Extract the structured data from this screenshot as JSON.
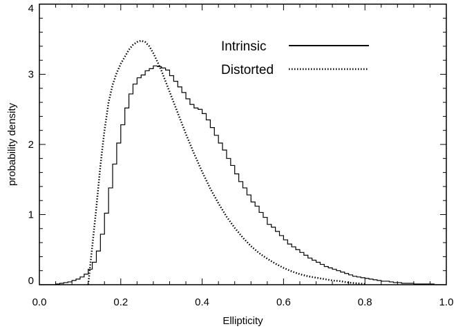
{
  "chart_data": {
    "type": "line",
    "xlabel": "Ellipticity",
    "ylabel": "probability density",
    "xlim": [
      0.0,
      1.0
    ],
    "ylim": [
      0,
      4
    ],
    "x_ticks": [
      "0.0",
      "0.2",
      "0.4",
      "0.6",
      "0.8",
      "1.0"
    ],
    "y_ticks": [
      "0",
      "1",
      "2",
      "3",
      "4"
    ],
    "grid": false,
    "legend_position": "top-right",
    "series": [
      {
        "name": "Intrinsic",
        "style": "solid-step",
        "color": "#000000",
        "bin_width": 0.01,
        "x": [
          0.0,
          0.01,
          0.02,
          0.03,
          0.04,
          0.05,
          0.06,
          0.07,
          0.08,
          0.09,
          0.1,
          0.11,
          0.12,
          0.13,
          0.14,
          0.15,
          0.16,
          0.17,
          0.18,
          0.19,
          0.2,
          0.21,
          0.22,
          0.23,
          0.24,
          0.25,
          0.26,
          0.27,
          0.28,
          0.29,
          0.3,
          0.31,
          0.32,
          0.33,
          0.34,
          0.35,
          0.36,
          0.37,
          0.38,
          0.39,
          0.4,
          0.41,
          0.42,
          0.43,
          0.44,
          0.45,
          0.46,
          0.47,
          0.48,
          0.49,
          0.5,
          0.51,
          0.52,
          0.53,
          0.54,
          0.55,
          0.56,
          0.57,
          0.58,
          0.59,
          0.6,
          0.61,
          0.62,
          0.63,
          0.64,
          0.65,
          0.66,
          0.67,
          0.68,
          0.69,
          0.7,
          0.71,
          0.72,
          0.73,
          0.74,
          0.75,
          0.76,
          0.77,
          0.78,
          0.79,
          0.8,
          0.81,
          0.82,
          0.83,
          0.84,
          0.85,
          0.86,
          0.87,
          0.88,
          0.89,
          0.9,
          0.91,
          0.92,
          0.93,
          0.94,
          0.95,
          0.96,
          0.97,
          0.98,
          0.99
        ],
        "values": [
          0.0,
          0.0,
          0.0,
          0.0,
          0.01,
          0.02,
          0.03,
          0.04,
          0.06,
          0.08,
          0.11,
          0.15,
          0.22,
          0.32,
          0.48,
          0.72,
          1.02,
          1.38,
          1.72,
          2.02,
          2.28,
          2.52,
          2.72,
          2.86,
          2.95,
          2.99,
          3.05,
          3.08,
          3.12,
          3.11,
          3.09,
          3.06,
          2.98,
          2.9,
          2.82,
          2.74,
          2.65,
          2.57,
          2.52,
          2.5,
          2.44,
          2.35,
          2.24,
          2.13,
          2.02,
          1.92,
          1.8,
          1.7,
          1.58,
          1.47,
          1.38,
          1.28,
          1.18,
          1.12,
          1.03,
          0.96,
          0.86,
          0.82,
          0.76,
          0.7,
          0.64,
          0.58,
          0.54,
          0.5,
          0.46,
          0.42,
          0.38,
          0.35,
          0.32,
          0.29,
          0.26,
          0.24,
          0.22,
          0.2,
          0.18,
          0.16,
          0.14,
          0.12,
          0.11,
          0.1,
          0.09,
          0.08,
          0.07,
          0.06,
          0.05,
          0.05,
          0.04,
          0.03,
          0.03,
          0.02,
          0.02,
          0.02,
          0.01,
          0.01,
          0.01,
          0.01,
          0.01,
          0.0,
          0.0,
          0.0
        ]
      },
      {
        "name": "Distorted",
        "style": "dotted",
        "color": "#000000",
        "x": [
          0.12,
          0.13,
          0.14,
          0.15,
          0.16,
          0.17,
          0.18,
          0.19,
          0.2,
          0.21,
          0.22,
          0.23,
          0.24,
          0.25,
          0.26,
          0.27,
          0.28,
          0.29,
          0.3,
          0.31,
          0.32,
          0.34,
          0.36,
          0.38,
          0.4,
          0.42,
          0.44,
          0.46,
          0.48,
          0.5,
          0.52,
          0.54,
          0.56,
          0.58,
          0.6,
          0.62,
          0.64,
          0.66,
          0.68,
          0.7,
          0.72,
          0.74,
          0.76,
          0.78,
          0.8
        ],
        "values": [
          0.0,
          0.55,
          1.1,
          1.7,
          2.2,
          2.6,
          2.85,
          3.02,
          3.15,
          3.25,
          3.35,
          3.42,
          3.46,
          3.48,
          3.46,
          3.4,
          3.3,
          3.18,
          3.05,
          2.9,
          2.75,
          2.45,
          2.15,
          1.87,
          1.61,
          1.37,
          1.16,
          0.97,
          0.81,
          0.67,
          0.55,
          0.45,
          0.37,
          0.3,
          0.24,
          0.19,
          0.15,
          0.12,
          0.1,
          0.08,
          0.06,
          0.05,
          0.03,
          0.02,
          0.01
        ]
      }
    ]
  }
}
